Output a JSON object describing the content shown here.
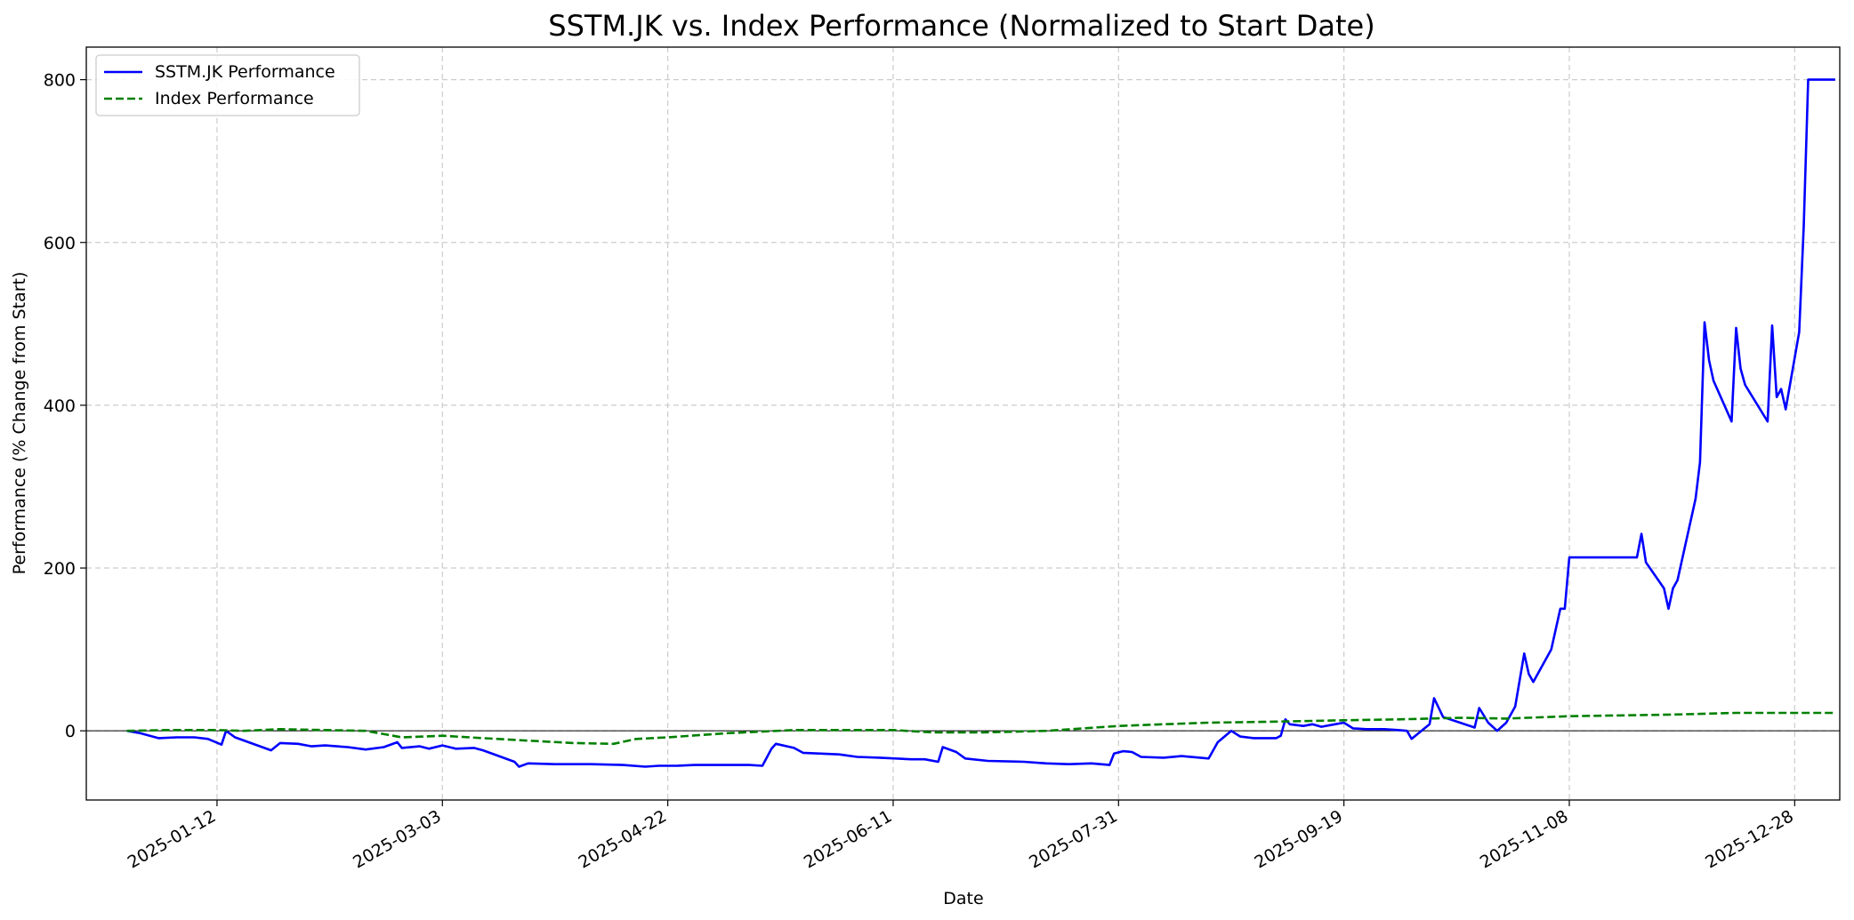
{
  "chart_data": {
    "type": "line",
    "title": "SSTM.JK vs. Index Performance (Normalized to Start Date)",
    "xlabel": "Date",
    "ylabel": "Performance (% Change from Start)",
    "xlim": [
      "2024-12-14",
      "2026-01-07"
    ],
    "ylim": [
      -85,
      840
    ],
    "x_ticks": [
      "2025-01-12",
      "2025-03-03",
      "2025-04-22",
      "2025-06-11",
      "2025-07-31",
      "2025-09-19",
      "2025-11-08",
      "2025-12-28"
    ],
    "y_ticks": [
      0,
      200,
      400,
      600,
      800
    ],
    "grid": true,
    "zero_line": true,
    "legend_position": "upper-left",
    "colors": {
      "sstm": "#0000ff",
      "index": "#008000",
      "grid": "#cccccc",
      "zero": "#000000"
    },
    "series": [
      {
        "name": "SSTM.JK Performance",
        "style": "solid",
        "color": "#0000ff",
        "points": [
          [
            "2024-12-23",
            0
          ],
          [
            "2024-12-26",
            -3
          ],
          [
            "2024-12-30",
            -9
          ],
          [
            "2025-01-03",
            -8
          ],
          [
            "2025-01-07",
            -8
          ],
          [
            "2025-01-10",
            -10
          ],
          [
            "2025-01-13",
            -17
          ],
          [
            "2025-01-14",
            0
          ],
          [
            "2025-01-16",
            -8
          ],
          [
            "2025-01-21",
            -18
          ],
          [
            "2025-01-24",
            -24
          ],
          [
            "2025-01-26",
            -15
          ],
          [
            "2025-01-30",
            -16
          ],
          [
            "2025-02-02",
            -19
          ],
          [
            "2025-02-05",
            -18
          ],
          [
            "2025-02-10",
            -20
          ],
          [
            "2025-02-14",
            -23
          ],
          [
            "2025-02-18",
            -20
          ],
          [
            "2025-02-21",
            -14
          ],
          [
            "2025-02-22",
            -21
          ],
          [
            "2025-02-26",
            -19
          ],
          [
            "2025-02-28",
            -22
          ],
          [
            "2025-03-03",
            -18
          ],
          [
            "2025-03-06",
            -22
          ],
          [
            "2025-03-10",
            -21
          ],
          [
            "2025-03-12",
            -24
          ],
          [
            "2025-03-15",
            -30
          ],
          [
            "2025-03-19",
            -38
          ],
          [
            "2025-03-20",
            -44
          ],
          [
            "2025-03-22",
            -40
          ],
          [
            "2025-03-28",
            -41
          ],
          [
            "2025-04-05",
            -41
          ],
          [
            "2025-04-12",
            -42
          ],
          [
            "2025-04-17",
            -44
          ],
          [
            "2025-04-20",
            -43
          ],
          [
            "2025-04-24",
            -43
          ],
          [
            "2025-04-28",
            -42
          ],
          [
            "2025-05-05",
            -42
          ],
          [
            "2025-05-10",
            -42
          ],
          [
            "2025-05-13",
            -43
          ],
          [
            "2025-05-15",
            -22
          ],
          [
            "2025-05-16",
            -16
          ],
          [
            "2025-05-20",
            -21
          ],
          [
            "2025-05-22",
            -27
          ],
          [
            "2025-05-26",
            -28
          ],
          [
            "2025-05-30",
            -29
          ],
          [
            "2025-06-03",
            -32
          ],
          [
            "2025-06-08",
            -33
          ],
          [
            "2025-06-15",
            -35
          ],
          [
            "2025-06-18",
            -35
          ],
          [
            "2025-06-21",
            -38
          ],
          [
            "2025-06-22",
            -20
          ],
          [
            "2025-06-25",
            -26
          ],
          [
            "2025-06-27",
            -34
          ],
          [
            "2025-07-02",
            -37
          ],
          [
            "2025-07-10",
            -38
          ],
          [
            "2025-07-15",
            -40
          ],
          [
            "2025-07-20",
            -41
          ],
          [
            "2025-07-25",
            -40
          ],
          [
            "2025-07-29",
            -42
          ],
          [
            "2025-07-30",
            -28
          ],
          [
            "2025-08-01",
            -25
          ],
          [
            "2025-08-03",
            -26
          ],
          [
            "2025-08-05",
            -32
          ],
          [
            "2025-08-10",
            -33
          ],
          [
            "2025-08-14",
            -31
          ],
          [
            "2025-08-20",
            -34
          ],
          [
            "2025-08-22",
            -14
          ],
          [
            "2025-08-25",
            0
          ],
          [
            "2025-08-27",
            -7
          ],
          [
            "2025-08-30",
            -9
          ],
          [
            "2025-09-04",
            -9
          ],
          [
            "2025-09-05",
            -6
          ],
          [
            "2025-09-06",
            14
          ],
          [
            "2025-09-07",
            8
          ],
          [
            "2025-09-10",
            6
          ],
          [
            "2025-09-12",
            8
          ],
          [
            "2025-09-14",
            5
          ],
          [
            "2025-09-17",
            8
          ],
          [
            "2025-09-19",
            10
          ],
          [
            "2025-09-21",
            3
          ],
          [
            "2025-09-24",
            2
          ],
          [
            "2025-09-28",
            2
          ],
          [
            "2025-10-01",
            1
          ],
          [
            "2025-10-03",
            0
          ],
          [
            "2025-10-04",
            -10
          ],
          [
            "2025-10-08",
            8
          ],
          [
            "2025-10-09",
            40
          ],
          [
            "2025-10-11",
            17
          ],
          [
            "2025-10-18",
            4
          ],
          [
            "2025-10-19",
            28
          ],
          [
            "2025-10-21",
            10
          ],
          [
            "2025-10-23",
            0
          ],
          [
            "2025-10-25",
            10
          ],
          [
            "2025-10-27",
            30
          ],
          [
            "2025-10-29",
            95
          ],
          [
            "2025-10-30",
            70
          ],
          [
            "2025-10-31",
            60
          ],
          [
            "2025-11-04",
            100
          ],
          [
            "2025-11-06",
            150
          ],
          [
            "2025-11-07",
            150
          ],
          [
            "2025-11-08",
            213
          ],
          [
            "2025-11-12",
            213
          ],
          [
            "2025-11-20",
            213
          ],
          [
            "2025-11-23",
            213
          ],
          [
            "2025-11-24",
            242
          ],
          [
            "2025-11-25",
            207
          ],
          [
            "2025-11-29",
            175
          ],
          [
            "2025-11-30",
            150
          ],
          [
            "2025-12-01",
            175
          ],
          [
            "2025-12-02",
            185
          ],
          [
            "2025-12-06",
            285
          ],
          [
            "2025-12-07",
            330
          ],
          [
            "2025-12-08",
            502
          ],
          [
            "2025-12-09",
            455
          ],
          [
            "2025-12-10",
            430
          ],
          [
            "2025-12-14",
            380
          ],
          [
            "2025-12-15",
            495
          ],
          [
            "2025-12-16",
            445
          ],
          [
            "2025-12-17",
            425
          ],
          [
            "2025-12-22",
            380
          ],
          [
            "2025-12-23",
            498
          ],
          [
            "2025-12-24",
            410
          ],
          [
            "2025-12-25",
            420
          ],
          [
            "2025-12-26",
            395
          ],
          [
            "2025-12-29",
            490
          ],
          [
            "2025-12-30",
            620
          ],
          [
            "2025-12-31",
            800
          ],
          [
            "2026-01-01",
            800
          ],
          [
            "2026-01-06",
            800
          ]
        ]
      },
      {
        "name": "Index Performance",
        "style": "dashed",
        "color": "#008000",
        "points": [
          [
            "2024-12-23",
            0
          ],
          [
            "2025-01-01",
            1
          ],
          [
            "2025-01-12",
            1
          ],
          [
            "2025-01-18",
            0
          ],
          [
            "2025-01-26",
            2
          ],
          [
            "2025-02-05",
            1
          ],
          [
            "2025-02-14",
            0
          ],
          [
            "2025-02-22",
            -8
          ],
          [
            "2025-03-03",
            -6
          ],
          [
            "2025-03-12",
            -9
          ],
          [
            "2025-03-22",
            -12
          ],
          [
            "2025-04-01",
            -15
          ],
          [
            "2025-04-10",
            -16
          ],
          [
            "2025-04-15",
            -10
          ],
          [
            "2025-04-22",
            -8
          ],
          [
            "2025-05-05",
            -3
          ],
          [
            "2025-05-20",
            1
          ],
          [
            "2025-06-01",
            1
          ],
          [
            "2025-06-11",
            1
          ],
          [
            "2025-06-20",
            -2
          ],
          [
            "2025-07-01",
            -2
          ],
          [
            "2025-07-15",
            0
          ],
          [
            "2025-07-31",
            6
          ],
          [
            "2025-08-10",
            8
          ],
          [
            "2025-08-20",
            10
          ],
          [
            "2025-09-01",
            11
          ],
          [
            "2025-09-19",
            13
          ],
          [
            "2025-10-01",
            14
          ],
          [
            "2025-10-15",
            16
          ],
          [
            "2025-10-25",
            15
          ],
          [
            "2025-11-08",
            18
          ],
          [
            "2025-11-20",
            19
          ],
          [
            "2025-12-01",
            20
          ],
          [
            "2025-12-15",
            22
          ],
          [
            "2025-12-28",
            22
          ],
          [
            "2026-01-06",
            22
          ]
        ]
      }
    ]
  }
}
